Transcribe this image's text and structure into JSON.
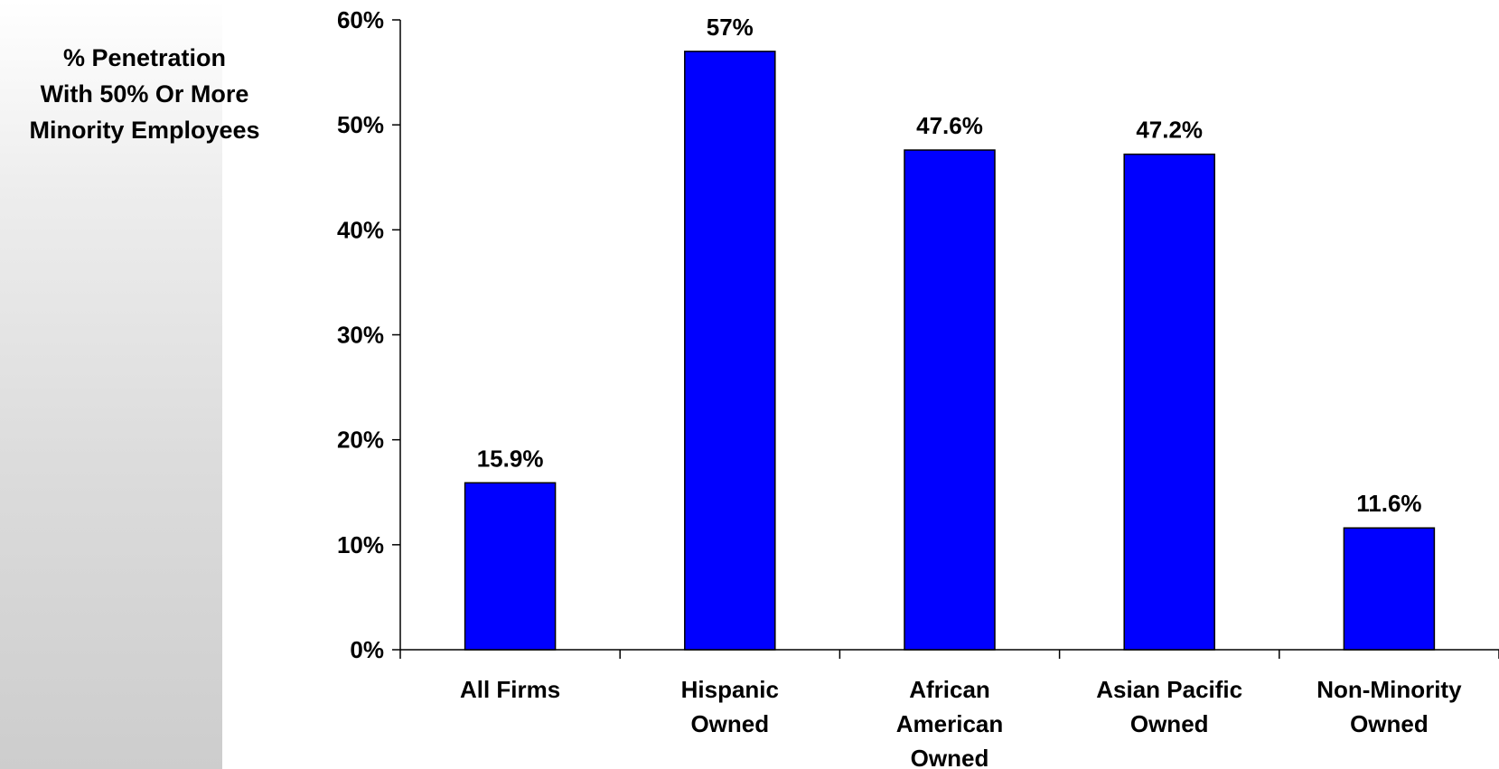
{
  "chart_data": {
    "type": "bar",
    "ylabel": "% Penetration\nWith 50% Or More\nMinority Employees",
    "xlabel": "",
    "categories": [
      [
        "All Firms"
      ],
      [
        "Hispanic",
        "Owned"
      ],
      [
        "African",
        "American",
        "Owned"
      ],
      [
        "Asian Pacific",
        "Owned"
      ],
      [
        "Non-Minority",
        "Owned"
      ]
    ],
    "values": [
      15.9,
      57,
      47.6,
      47.2,
      11.6
    ],
    "value_labels": [
      "15.9%",
      "57%",
      "47.6%",
      "47.2%",
      "11.6%"
    ],
    "ylim": [
      0,
      60
    ],
    "yticks": [
      0,
      10,
      20,
      30,
      40,
      50,
      60
    ],
    "ytick_labels": [
      "0%",
      "10%",
      "20%",
      "30%",
      "40%",
      "50%",
      "60%"
    ],
    "grid": false,
    "legend": "none",
    "colors": {
      "bar": "#0000ff",
      "bar_edge": "#000000",
      "panel": "#d6d6d6"
    }
  }
}
